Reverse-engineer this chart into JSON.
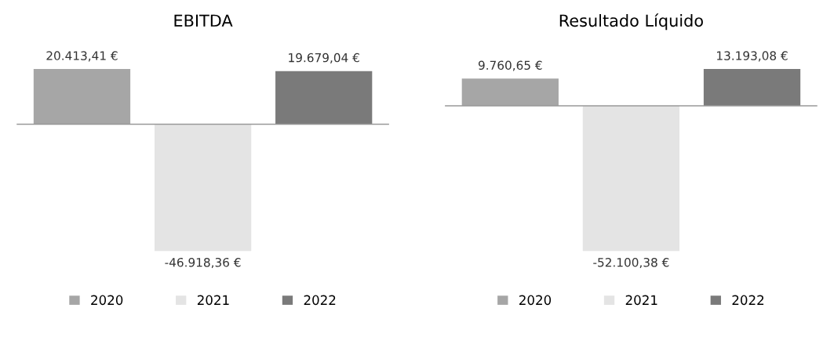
{
  "chart_data": [
    {
      "type": "bar",
      "title": "EBITDA",
      "categories": [
        null
      ],
      "legend": "bottom",
      "grid": false,
      "series": [
        {
          "name": "2020",
          "color": "#a6a6a6",
          "values": [
            20413.41
          ],
          "value_labels": [
            "20.413,41 €"
          ]
        },
        {
          "name": "2021",
          "color": "#e4e4e4",
          "values": [
            -46918.36
          ],
          "value_labels": [
            "-46.918,36 €"
          ]
        },
        {
          "name": "2022",
          "color": "#7a7a7a",
          "values": [
            19679.04
          ],
          "value_labels": [
            "19.679,04 €"
          ]
        }
      ]
    },
    {
      "type": "bar",
      "title": "Resultado Líquido",
      "categories": [
        null
      ],
      "legend": "bottom",
      "grid": false,
      "series": [
        {
          "name": "2020",
          "color": "#a6a6a6",
          "values": [
            9760.65
          ],
          "value_labels": [
            "9.760,65 €"
          ]
        },
        {
          "name": "2021",
          "color": "#e4e4e4",
          "values": [
            -52100.38
          ],
          "value_labels": [
            "-52.100,38 €"
          ]
        },
        {
          "name": "2022",
          "color": "#7a7a7a",
          "values": [
            13193.08
          ],
          "value_labels": [
            "13.193,08 €"
          ]
        }
      ]
    }
  ]
}
